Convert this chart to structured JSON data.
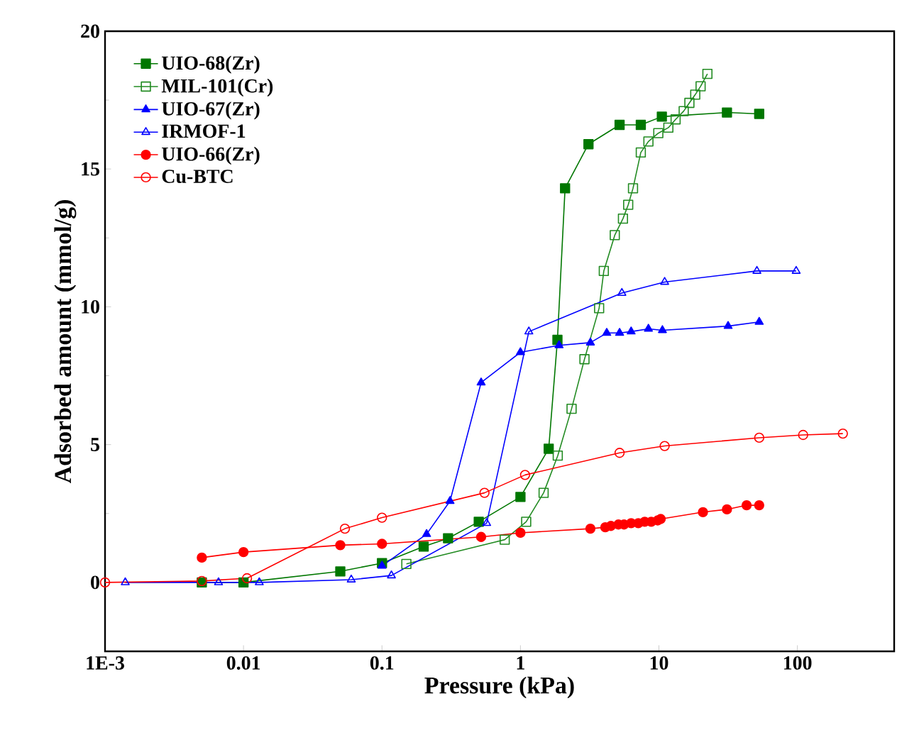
{
  "chart_data": {
    "type": "line",
    "xlabel": "Pressure (kPa)",
    "ylabel": "Adsorbed amount (mmol/g)",
    "log": "x",
    "xlim": [
      0.001,
      500
    ],
    "ylim": [
      -2.5,
      20
    ],
    "xticks": [
      {
        "value": 0.001,
        "label": "1E-3"
      },
      {
        "value": 0.01,
        "label": "0.01"
      },
      {
        "value": 0.1,
        "label": "0.1"
      },
      1,
      10,
      100
    ],
    "yticks": [
      0,
      5,
      10,
      15,
      20
    ],
    "grid": false,
    "legend": "top left",
    "line_style": "solid",
    "series": [
      {
        "name": "UIO-68(Zr)",
        "color": "#007700",
        "marker": "square",
        "x": [
          0.005,
          0.01,
          0.05,
          0.1,
          0.2,
          0.3,
          0.5,
          1,
          1.6,
          1.85,
          2.1,
          3.1,
          5.2,
          7.4,
          10.5,
          31,
          53
        ],
        "values": [
          0,
          0,
          0.4,
          0.7,
          1.3,
          1.6,
          2.2,
          3.1,
          4.85,
          8.8,
          14.3,
          15.9,
          16.6,
          16.6,
          16.9,
          17.05,
          17.0
        ]
      },
      {
        "name": "MIL-101(Cr)",
        "color": "#228B22",
        "marker": "square",
        "x": [
          0.15,
          0.77,
          1.1,
          1.47,
          1.86,
          2.34,
          2.9,
          3.7,
          4.0,
          4.8,
          5.5,
          6.0,
          6.5,
          7.4,
          8.4,
          9.9,
          11.7,
          13.2,
          15.1,
          16.6,
          18.3,
          20,
          22.4
        ],
        "values": [
          0.67,
          1.55,
          2.2,
          3.25,
          4.6,
          6.3,
          8.1,
          9.95,
          11.3,
          12.6,
          13.2,
          13.7,
          14.3,
          15.6,
          16.0,
          16.3,
          16.5,
          16.8,
          17.1,
          17.4,
          17.7,
          18.0,
          18.45
        ]
      },
      {
        "name": "UIO-67(Zr)",
        "color": "#0000ff",
        "marker": "triangle",
        "x": [
          0.1,
          0.21,
          0.31,
          0.52,
          1.0,
          1.9,
          3.2,
          4.2,
          5.2,
          6.3,
          8.4,
          10.6,
          31.6,
          53
        ],
        "values": [
          0.6,
          1.75,
          2.95,
          7.25,
          8.35,
          8.6,
          8.7,
          9.05,
          9.05,
          9.1,
          9.2,
          9.15,
          9.3,
          9.45
        ]
      },
      {
        "name": "IRMOF-1",
        "color": "#0000ff",
        "marker": "triangle",
        "x": [
          0.0014,
          0.0066,
          0.013,
          0.06,
          0.117,
          0.57,
          1.15,
          5.4,
          11,
          51,
          98
        ],
        "values": [
          0,
          0,
          0,
          0.1,
          0.25,
          2.15,
          9.1,
          10.5,
          10.9,
          11.3,
          11.3
        ]
      },
      {
        "name": "UIO-66(Zr)",
        "color": "#ff0000",
        "marker": "circle",
        "x": [
          0.005,
          0.01,
          0.05,
          0.1,
          0.52,
          1.0,
          3.2,
          4.1,
          4.5,
          5.1,
          5.6,
          6.3,
          7.1,
          7.9,
          8.8,
          9.8,
          10.3,
          20.8,
          31,
          43,
          53
        ],
        "values": [
          0.9,
          1.1,
          1.35,
          1.4,
          1.65,
          1.8,
          1.95,
          2.0,
          2.05,
          2.1,
          2.1,
          2.15,
          2.15,
          2.2,
          2.2,
          2.25,
          2.3,
          2.55,
          2.65,
          2.8,
          2.8
        ]
      },
      {
        "name": "Cu-BTC",
        "color": "#ff0000",
        "marker": "circle",
        "x": [
          0.001,
          0.005,
          0.0106,
          0.054,
          0.1,
          0.55,
          1.08,
          5.2,
          11,
          53,
          110,
          213
        ],
        "values": [
          0,
          0.05,
          0.15,
          1.95,
          2.35,
          3.25,
          3.9,
          4.7,
          4.95,
          5.25,
          5.35,
          5.4
        ]
      }
    ]
  }
}
